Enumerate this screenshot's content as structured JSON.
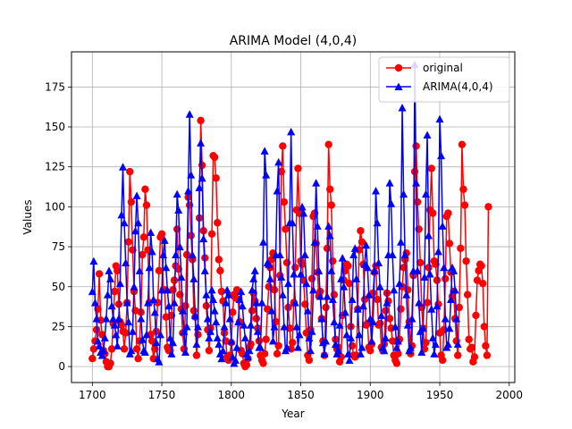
{
  "chart_data": {
    "type": "line",
    "title": "ARIMA Model (4,0,4)",
    "xlabel": "Year",
    "ylabel": "Values",
    "xlim": [
      1685,
      2004
    ],
    "ylim": [
      -10,
      197
    ],
    "xticks": [
      1700,
      1750,
      1800,
      1850,
      1900,
      1950,
      2000
    ],
    "yticks": [
      0,
      25,
      50,
      75,
      100,
      125,
      150,
      175
    ],
    "grid": true,
    "legend_position": "top-right",
    "x_start": 1700,
    "series": [
      {
        "name": "original",
        "color": "#ff0000",
        "marker": "circle",
        "values": [
          5,
          11,
          16,
          23,
          36,
          58,
          29,
          20,
          10,
          8,
          3,
          0,
          0,
          2,
          11,
          27,
          47,
          63,
          60,
          39,
          28,
          26,
          22,
          11,
          21,
          40,
          78,
          122,
          103,
          73,
          47,
          35,
          11,
          5,
          16,
          34,
          70,
          81,
          111,
          101,
          73,
          40,
          20,
          16,
          5,
          11,
          22,
          40,
          60,
          81,
          83,
          48,
          48,
          31,
          12,
          10,
          10,
          32,
          48,
          54,
          63,
          86,
          61,
          45,
          36,
          21,
          11,
          38,
          70,
          106,
          101,
          82,
          67,
          35,
          31,
          7,
          20,
          93,
          154,
          126,
          85,
          68,
          38,
          23,
          10,
          24,
          83,
          132,
          131,
          118,
          90,
          67,
          60,
          47,
          41,
          21,
          16,
          6,
          4,
          7,
          15,
          34,
          45,
          43,
          48,
          42,
          28,
          10,
          8,
          2,
          0,
          1,
          5,
          12,
          14,
          35,
          46,
          41,
          30,
          24,
          16,
          7,
          4,
          2,
          8,
          17,
          36,
          50,
          62,
          67,
          71,
          48,
          28,
          8,
          13,
          57,
          122,
          138,
          103,
          86,
          65,
          37,
          24,
          11,
          15,
          40,
          62,
          98,
          124,
          96,
          66,
          64,
          54,
          39,
          21,
          7,
          4,
          23,
          55,
          94,
          96,
          77,
          59,
          44,
          47,
          30,
          16,
          7,
          37,
          74,
          139,
          111,
          101,
          66,
          45,
          17,
          11,
          12,
          3,
          6,
          32,
          54,
          60,
          64,
          63,
          52,
          25,
          13,
          7,
          6,
          7,
          36,
          73,
          85,
          78,
          64,
          42,
          26,
          27,
          12,
          10,
          14,
          46,
          59,
          63,
          42,
          26,
          27,
          12,
          10,
          14,
          35,
          46,
          41,
          30,
          24,
          16,
          7,
          4,
          2,
          8,
          17,
          36,
          50,
          62,
          67,
          71,
          48,
          28,
          8,
          13,
          57,
          122,
          138,
          103,
          86,
          65,
          37,
          24,
          11,
          15,
          40,
          62,
          98,
          124,
          96,
          66,
          64,
          54,
          39,
          21,
          7,
          4,
          23,
          55,
          94,
          96,
          77,
          59,
          44,
          47,
          30,
          16,
          7,
          37,
          74,
          139,
          111,
          101,
          66,
          45,
          17,
          11,
          12,
          3,
          6,
          32,
          54,
          60,
          64,
          63,
          52,
          25,
          13,
          7,
          100
        ]
      },
      {
        "name": "ARIMA(4,0,4)",
        "color": "#0000ff",
        "marker": "triangle",
        "values": [
          47,
          66,
          40,
          30,
          16,
          13,
          9,
          7,
          10,
          18,
          30,
          45,
          60,
          55,
          38,
          30,
          26,
          20,
          13,
          30,
          52,
          95,
          125,
          90,
          65,
          40,
          28,
          8,
          10,
          22,
          50,
          85,
          107,
          90,
          60,
          30,
          17,
          10,
          9,
          20,
          40,
          62,
          84,
          72,
          42,
          34,
          15,
          5,
          3,
          20,
          48,
          70,
          79,
          62,
          48,
          38,
          18,
          8,
          15,
          40,
          70,
          108,
          98,
          75,
          56,
          35,
          22,
          9,
          25,
          110,
          158,
          120,
          70,
          55,
          32,
          14,
          25,
          112,
          140,
          118,
          80,
          60,
          45,
          30,
          18,
          22,
          48,
          42,
          35,
          28,
          18,
          14,
          8,
          5,
          10,
          25,
          40,
          48,
          45,
          30,
          16,
          6,
          2,
          4,
          12,
          28,
          42,
          47,
          38,
          26,
          18,
          8,
          6,
          10,
          26,
          48,
          55,
          60,
          40,
          22,
          12,
          12,
          40,
          78,
          135,
          120,
          65,
          64,
          55,
          35,
          16,
          25,
          70,
          110,
          128,
          70,
          56,
          45,
          25,
          10,
          12,
          52,
          90,
          147,
          90,
          58,
          40,
          25,
          12,
          20,
          58,
          100,
          96,
          70,
          52,
          35,
          18,
          10,
          22,
          48,
          78,
          115,
          88,
          60,
          44,
          30,
          15,
          8,
          16,
          44,
          88,
          82,
          60,
          42,
          28,
          14,
          8,
          10,
          26,
          55,
          68,
          50,
          34,
          20,
          8,
          4,
          18,
          42,
          70,
          74,
          55,
          36,
          20,
          8,
          12,
          38,
          64,
          76,
          62,
          45,
          30,
          16,
          28,
          60,
          110,
          90,
          65,
          50,
          32,
          12,
          10,
          18,
          40,
          70,
          115,
          102,
          70,
          48,
          25,
          12,
          16,
          52,
          78,
          162,
          108,
          70,
          45,
          26,
          10,
          12,
          30,
          60,
          189,
          115,
          60,
          40,
          22,
          9,
          24,
          56,
          108,
          145,
          82,
          58,
          36,
          18,
          8,
          14,
          38,
          72,
          155,
          132,
          88,
          62,
          30,
          12,
          14,
          24,
          42,
          62,
          60,
          48,
          30,
          14
        ]
      }
    ]
  }
}
